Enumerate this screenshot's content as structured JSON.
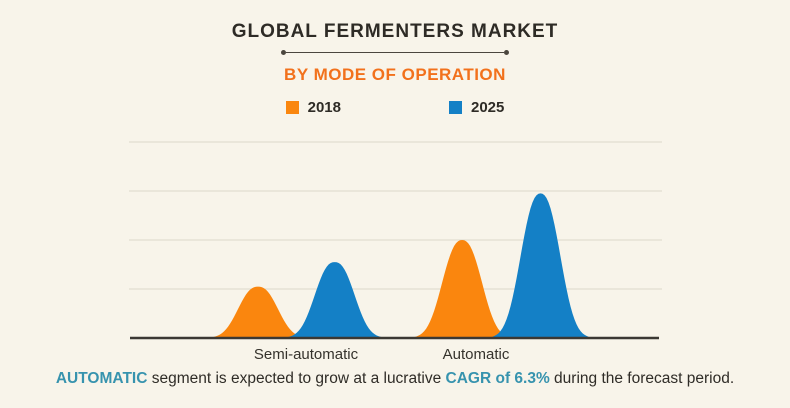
{
  "title": "GLOBAL FERMENTERS MARKET",
  "subtitle": "BY MODE OF OPERATION",
  "legend": {
    "items": [
      {
        "label": "2018",
        "color": "#FA860E"
      },
      {
        "label": "2025",
        "color": "#1480C6"
      }
    ]
  },
  "footnote": {
    "highlight_1": "AUTOMATIC",
    "segment_1": " segment is expected to grow at a lucrative ",
    "highlight_2": "CAGR of 6.3%",
    "segment_2": " during the forecast period.",
    "highlight_color": "#3793AE"
  },
  "colors": {
    "background": "#F8F4EA",
    "title_text": "#2E2B26",
    "subtitle_orange": "#F2711C",
    "series_2018_orange": "#FA860E",
    "series_2025_blue": "#1480C6",
    "footnote_teal": "#3793AE",
    "gridline": "#DCD7C9",
    "axis": "#3B3833"
  },
  "chart_data": {
    "type": "area",
    "style": "bell-peaks",
    "title": "GLOBAL FERMENTERS MARKET — BY MODE OF OPERATION",
    "categories": [
      "Semi-automatic",
      "Automatic"
    ],
    "series": [
      {
        "name": "2018",
        "color": "#FA860E",
        "values": [
          1.05,
          2.0
        ]
      },
      {
        "name": "2025",
        "color": "#1480C6",
        "values": [
          1.55,
          2.95
        ]
      }
    ],
    "value_scale": "gridline units (y-axis unlabeled)",
    "ylim": [
      0,
      4
    ],
    "grid": true,
    "legend_position": "top",
    "peaks": [
      {
        "series": "2018",
        "category": "Semi-automatic",
        "x_frac": 0.242,
        "height_units": 1.05
      },
      {
        "series": "2025",
        "category": "Semi-automatic",
        "x_frac": 0.386,
        "height_units": 1.55
      },
      {
        "series": "2018",
        "category": "Automatic",
        "x_frac": 0.625,
        "height_units": 2.0
      },
      {
        "series": "2025",
        "category": "Automatic",
        "x_frac": 0.772,
        "height_units": 2.95
      }
    ]
  }
}
